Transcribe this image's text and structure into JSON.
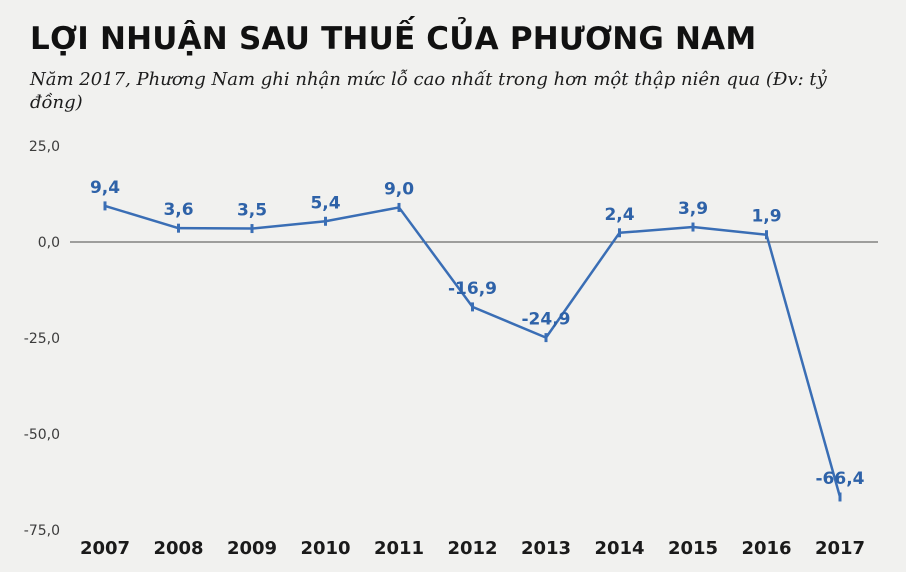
{
  "header": {
    "title": "LỢI NHUẬN SAU THUẾ CỦA PHƯƠNG NAM",
    "subtitle": "Năm 2017, Phương Nam ghi nhận mức lỗ cao nhất trong hơn một thập niên qua (Đv: tỷ đồng)"
  },
  "chart_data": {
    "type": "line",
    "title": "LỢI NHUẬN SAU THUẾ CỦA PHƯƠNG NAM",
    "subtitle": "Năm 2017, Phương Nam ghi nhận mức lỗ cao nhất trong hơn một thập niên qua (Đv: tỷ đồng)",
    "unit": "tỷ đồng",
    "categories": [
      "2007",
      "2008",
      "2009",
      "2010",
      "2011",
      "2012",
      "2013",
      "2014",
      "2015",
      "2016",
      "2017"
    ],
    "values": [
      9.4,
      3.6,
      3.5,
      5.4,
      9.0,
      -16.9,
      -24.9,
      2.4,
      3.9,
      1.9,
      -66.4
    ],
    "point_labels": [
      "9,4",
      "3,6",
      "3,5",
      "5,4",
      "9,0",
      "-16,9",
      "-24,9",
      "2,4",
      "3,9",
      "1,9",
      "-66,4"
    ],
    "xlabel": "",
    "ylabel": "",
    "ylim": [
      -75,
      25
    ],
    "yticks": [
      25,
      0,
      -25,
      -50,
      -75
    ],
    "ytick_labels": [
      "25,0",
      "0,0",
      "-25,0",
      "-50,0",
      "-75,0"
    ],
    "grid": false,
    "legend": "none",
    "line_color": "#3a6eb5",
    "label_color": "#2e62a8"
  },
  "colors": {
    "background": "#f1f1ef",
    "line": "#3a6eb5",
    "data_label": "#2e62a8",
    "axis_line": "#4a4a4a",
    "tick_text": "#3c3c3c",
    "title_text": "#111111"
  }
}
